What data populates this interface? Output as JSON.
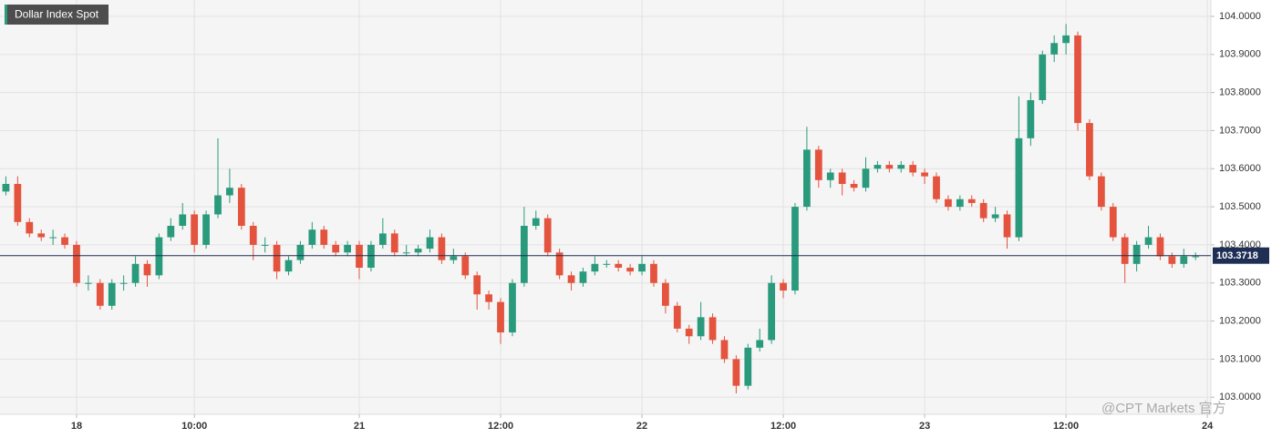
{
  "chart_data": {
    "type": "candlestick",
    "title": "Dollar Index Spot",
    "watermark": "@CPT Markets 官方",
    "up_color": "#2a9a7c",
    "down_color": "#e4533d",
    "grid": true,
    "last_price": 103.3718,
    "last_price_color": "#1e2e55",
    "xlim": [
      -6.5,
      96.3
    ],
    "ylim": [
      102.955,
      104.043
    ],
    "xticks": [
      {
        "value": 0,
        "label": "18"
      },
      {
        "value": 10,
        "label": "10:00"
      },
      {
        "value": 24,
        "label": "21"
      },
      {
        "value": 36,
        "label": "12:00"
      },
      {
        "value": 48,
        "label": "22"
      },
      {
        "value": 60,
        "label": "12:00"
      },
      {
        "value": 72,
        "label": "23"
      },
      {
        "value": 84,
        "label": "12:00"
      },
      {
        "value": 96,
        "label": "24"
      }
    ],
    "yticks": [
      {
        "value": 103.0,
        "label": "103.0000"
      },
      {
        "value": 103.1,
        "label": "103.1000"
      },
      {
        "value": 103.2,
        "label": "103.2000"
      },
      {
        "value": 103.3,
        "label": "103.3000"
      },
      {
        "value": 103.4,
        "label": "103.4000"
      },
      {
        "value": 103.5,
        "label": "103.5000"
      },
      {
        "value": 103.6,
        "label": "103.6000"
      },
      {
        "value": 103.7,
        "label": "103.7000"
      },
      {
        "value": 103.8,
        "label": "103.8000"
      },
      {
        "value": 103.9,
        "label": "103.9000"
      },
      {
        "value": 104.0,
        "label": "104.0000"
      }
    ],
    "x": [
      -6,
      -5,
      -4,
      -3,
      -2,
      -1,
      0,
      1,
      2,
      3,
      4,
      5,
      6,
      7,
      8,
      9,
      10,
      11,
      12,
      13,
      14,
      15,
      16,
      17,
      18,
      19,
      20,
      21,
      22,
      23,
      24,
      25,
      26,
      27,
      28,
      29,
      30,
      31,
      32,
      33,
      34,
      35,
      36,
      37,
      38,
      39,
      40,
      41,
      42,
      43,
      44,
      45,
      46,
      47,
      48,
      49,
      50,
      51,
      52,
      53,
      54,
      55,
      56,
      57,
      58,
      59,
      60,
      61,
      62,
      63,
      64,
      65,
      66,
      67,
      68,
      69,
      70,
      71,
      72,
      73,
      74,
      75,
      76,
      77,
      78,
      79,
      80,
      81,
      82,
      83,
      84,
      85,
      86,
      87,
      88,
      89,
      90,
      91,
      92,
      93,
      94,
      95
    ],
    "open": [
      103.54,
      103.56,
      103.46,
      103.43,
      103.42,
      103.42,
      103.4,
      103.3,
      103.3,
      103.24,
      103.3,
      103.3,
      103.35,
      103.32,
      103.42,
      103.45,
      103.48,
      103.4,
      103.48,
      103.53,
      103.55,
      103.45,
      103.4,
      103.4,
      103.33,
      103.36,
      103.4,
      103.44,
      103.4,
      103.38,
      103.4,
      103.34,
      103.4,
      103.43,
      103.38,
      103.38,
      103.39,
      103.42,
      103.36,
      103.37,
      103.32,
      103.27,
      103.25,
      103.17,
      103.3,
      103.45,
      103.47,
      103.38,
      103.32,
      103.3,
      103.33,
      103.35,
      103.35,
      103.34,
      103.33,
      103.35,
      103.3,
      103.24,
      103.18,
      103.16,
      103.21,
      103.15,
      103.1,
      103.03,
      103.13,
      103.15,
      103.3,
      103.28,
      103.5,
      103.65,
      103.57,
      103.59,
      103.56,
      103.55,
      103.6,
      103.61,
      103.6,
      103.61,
      103.59,
      103.58,
      103.52,
      103.5,
      103.52,
      103.51,
      103.47,
      103.48,
      103.42,
      103.68,
      103.78,
      103.9,
      103.93,
      103.95,
      103.72,
      103.58,
      103.5,
      103.42,
      103.35,
      103.4,
      103.42,
      103.37,
      103.35,
      103.37
    ],
    "high": [
      103.58,
      103.58,
      103.47,
      103.44,
      103.44,
      103.43,
      103.41,
      103.32,
      103.31,
      103.31,
      103.32,
      103.37,
      103.36,
      103.43,
      103.47,
      103.51,
      103.49,
      103.49,
      103.68,
      103.6,
      103.56,
      103.46,
      103.42,
      103.41,
      103.37,
      103.41,
      103.46,
      103.45,
      103.41,
      103.41,
      103.41,
      103.41,
      103.47,
      103.44,
      103.4,
      103.4,
      103.44,
      103.43,
      103.39,
      103.38,
      103.33,
      103.28,
      103.26,
      103.31,
      103.5,
      103.49,
      103.48,
      103.39,
      103.33,
      103.34,
      103.37,
      103.36,
      103.36,
      103.35,
      103.37,
      103.36,
      103.31,
      103.25,
      103.19,
      103.25,
      103.22,
      103.16,
      103.11,
      103.14,
      103.18,
      103.32,
      103.31,
      103.51,
      103.71,
      103.66,
      103.6,
      103.6,
      103.57,
      103.63,
      103.62,
      103.62,
      103.62,
      103.62,
      103.6,
      103.59,
      103.53,
      103.53,
      103.53,
      103.52,
      103.5,
      103.49,
      103.79,
      103.8,
      103.91,
      103.95,
      103.98,
      103.96,
      103.73,
      103.59,
      103.51,
      103.43,
      103.41,
      103.45,
      103.43,
      103.38,
      103.39,
      103.38
    ],
    "low": [
      103.53,
      103.45,
      103.42,
      103.41,
      103.4,
      103.39,
      103.29,
      103.28,
      103.23,
      103.23,
      103.28,
      103.29,
      103.29,
      103.31,
      103.41,
      103.44,
      103.38,
      103.39,
      103.47,
      103.51,
      103.44,
      103.36,
      103.38,
      103.31,
      103.32,
      103.35,
      103.39,
      103.39,
      103.37,
      103.37,
      103.31,
      103.33,
      103.39,
      103.37,
      103.37,
      103.37,
      103.38,
      103.35,
      103.35,
      103.31,
      103.23,
      103.23,
      103.14,
      103.16,
      103.29,
      103.44,
      103.37,
      103.31,
      103.28,
      103.29,
      103.32,
      103.34,
      103.33,
      103.32,
      103.32,
      103.29,
      103.22,
      103.17,
      103.14,
      103.15,
      103.14,
      103.09,
      103.01,
      103.02,
      103.12,
      103.14,
      103.26,
      103.27,
      103.49,
      103.55,
      103.55,
      103.53,
      103.54,
      103.54,
      103.59,
      103.59,
      103.59,
      103.58,
      103.56,
      103.51,
      103.49,
      103.49,
      103.5,
      103.46,
      103.46,
      103.39,
      103.41,
      103.66,
      103.77,
      103.88,
      103.9,
      103.7,
      103.57,
      103.49,
      103.41,
      103.3,
      103.33,
      103.39,
      103.36,
      103.34,
      103.34,
      103.36
    ],
    "close": [
      103.56,
      103.46,
      103.43,
      103.42,
      103.42,
      103.4,
      103.3,
      103.3,
      103.24,
      103.3,
      103.3,
      103.35,
      103.32,
      103.42,
      103.45,
      103.48,
      103.4,
      103.48,
      103.53,
      103.55,
      103.45,
      103.4,
      103.4,
      103.33,
      103.36,
      103.4,
      103.44,
      103.4,
      103.38,
      103.4,
      103.34,
      103.4,
      103.43,
      103.38,
      103.38,
      103.39,
      103.42,
      103.36,
      103.37,
      103.32,
      103.27,
      103.25,
      103.17,
      103.3,
      103.45,
      103.47,
      103.38,
      103.32,
      103.3,
      103.33,
      103.35,
      103.35,
      103.34,
      103.33,
      103.35,
      103.3,
      103.24,
      103.18,
      103.16,
      103.21,
      103.15,
      103.1,
      103.03,
      103.13,
      103.15,
      103.3,
      103.28,
      103.5,
      103.65,
      103.57,
      103.59,
      103.56,
      103.55,
      103.6,
      103.61,
      103.6,
      103.61,
      103.59,
      103.58,
      103.52,
      103.5,
      103.52,
      103.51,
      103.47,
      103.48,
      103.42,
      103.68,
      103.78,
      103.9,
      103.93,
      103.95,
      103.72,
      103.58,
      103.5,
      103.42,
      103.35,
      103.4,
      103.42,
      103.37,
      103.35,
      103.37,
      103.37
    ]
  }
}
